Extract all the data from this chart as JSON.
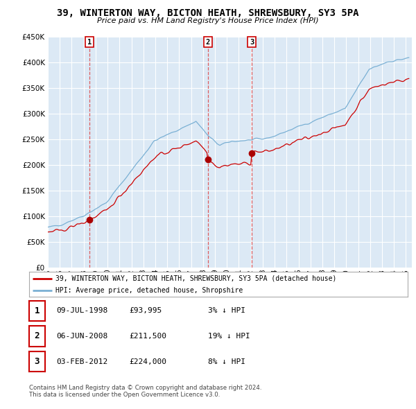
{
  "title": "39, WINTERTON WAY, BICTON HEATH, SHREWSBURY, SY3 5PA",
  "subtitle": "Price paid vs. HM Land Registry's House Price Index (HPI)",
  "legend_line1": "39, WINTERTON WAY, BICTON HEATH, SHREWSBURY, SY3 5PA (detached house)",
  "legend_line2": "HPI: Average price, detached house, Shropshire",
  "sale1_date": "09-JUL-1998",
  "sale1_price": 93995,
  "sale2_date": "06-JUN-2008",
  "sale2_price": 211500,
  "sale3_date": "03-FEB-2012",
  "sale3_price": 224000,
  "sale1_pct": "3% ↓ HPI",
  "sale2_pct": "19% ↓ HPI",
  "sale3_pct": "8% ↓ HPI",
  "ylabel_vals": [
    "£0",
    "£50K",
    "£100K",
    "£150K",
    "£200K",
    "£250K",
    "£300K",
    "£350K",
    "£400K",
    "£450K"
  ],
  "ylabel_nums": [
    0,
    50000,
    100000,
    150000,
    200000,
    250000,
    300000,
    350000,
    400000,
    450000
  ],
  "ylim": [
    0,
    450000
  ],
  "background_color": "#dce9f5",
  "grid_color": "#ffffff",
  "red_line_color": "#cc0000",
  "blue_line_color": "#7ab0d4",
  "vline_color": "#dd4444",
  "footer1": "Contains HM Land Registry data © Crown copyright and database right 2024.",
  "footer2": "This data is licensed under the Open Government Licence v3.0."
}
